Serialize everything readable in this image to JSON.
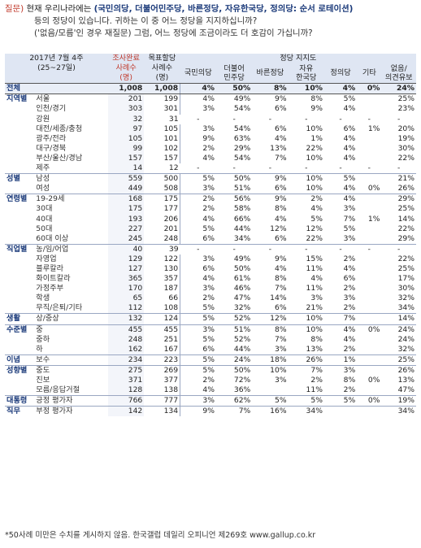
{
  "question": {
    "tag": "질문)",
    "line1_pre": "현재 우리나라에는",
    "line1_parties": "(국민의당, 더불어민주당, 바른정당, 자유한국당, 정의당: 순서 로테이션)",
    "line2": "등의 정당이 있습니다. 귀하는 이 중 어느 정당을 지지하십니까?",
    "line3": "('없음/모름'인 경우 재질문) 그럼, 어느 정당에 조금이라도 더 호감이 가십니까?"
  },
  "header": {
    "date": "2017년 7월 4주",
    "date_range": "(25~27일)",
    "col_sample1": "조사완료",
    "col_sample2": "사례수",
    "col_sample3": "(명)",
    "col_target1": "목표할당",
    "col_target2": "사례수",
    "col_target3": "(명)",
    "support": "정당 지지도",
    "parties": [
      "국민의당",
      "더불어\n민주당",
      "바른정당",
      "자유\n한국당",
      "정의당",
      "기타",
      "없음/\n의견유보"
    ]
  },
  "rows": [
    {
      "cat": "전체",
      "sub": "",
      "n1": "1,008",
      "n2": "1,008",
      "v": [
        "4%",
        "50%",
        "8%",
        "10%",
        "4%",
        "0%",
        "24%"
      ],
      "total": true
    },
    {
      "cat": "지역별",
      "sub": "서울",
      "n1": "201",
      "n2": "199",
      "v": [
        "4%",
        "49%",
        "9%",
        "8%",
        "5%",
        "",
        "25%"
      ]
    },
    {
      "cat": "",
      "sub": "인천/경기",
      "n1": "303",
      "n2": "301",
      "v": [
        "3%",
        "54%",
        "6%",
        "9%",
        "4%",
        "",
        "23%"
      ]
    },
    {
      "cat": "",
      "sub": "강원",
      "n1": "32",
      "n2": "31",
      "v": [
        "-",
        "-",
        "-",
        "-",
        "-",
        "-",
        "-"
      ]
    },
    {
      "cat": "",
      "sub": "대전/세종/충청",
      "n1": "97",
      "n2": "105",
      "v": [
        "3%",
        "54%",
        "6%",
        "10%",
        "6%",
        "1%",
        "20%"
      ]
    },
    {
      "cat": "",
      "sub": "광주/전라",
      "n1": "105",
      "n2": "101",
      "v": [
        "9%",
        "63%",
        "4%",
        "1%",
        "4%",
        "",
        "19%"
      ]
    },
    {
      "cat": "",
      "sub": "대구/경북",
      "n1": "99",
      "n2": "102",
      "v": [
        "2%",
        "29%",
        "13%",
        "22%",
        "4%",
        "",
        "30%"
      ]
    },
    {
      "cat": "",
      "sub": "부산/울산/경남",
      "n1": "157",
      "n2": "157",
      "v": [
        "4%",
        "54%",
        "7%",
        "10%",
        "4%",
        "",
        "22%"
      ]
    },
    {
      "cat": "",
      "sub": "제주",
      "n1": "14",
      "n2": "12",
      "v": [
        "-",
        "-",
        "-",
        "-",
        "-",
        "-",
        "-"
      ]
    },
    {
      "cat": "성별",
      "sub": "남성",
      "n1": "559",
      "n2": "500",
      "v": [
        "5%",
        "50%",
        "9%",
        "10%",
        "5%",
        "",
        "21%"
      ]
    },
    {
      "cat": "",
      "sub": "여성",
      "n1": "449",
      "n2": "508",
      "v": [
        "3%",
        "51%",
        "6%",
        "10%",
        "4%",
        "0%",
        "26%"
      ]
    },
    {
      "cat": "연령별",
      "sub": "19-29세",
      "n1": "168",
      "n2": "175",
      "v": [
        "2%",
        "56%",
        "9%",
        "2%",
        "4%",
        "",
        "29%"
      ]
    },
    {
      "cat": "",
      "sub": "30대",
      "n1": "175",
      "n2": "177",
      "v": [
        "2%",
        "58%",
        "8%",
        "4%",
        "3%",
        "",
        "25%"
      ]
    },
    {
      "cat": "",
      "sub": "40대",
      "n1": "193",
      "n2": "206",
      "v": [
        "4%",
        "66%",
        "4%",
        "5%",
        "7%",
        "1%",
        "14%"
      ]
    },
    {
      "cat": "",
      "sub": "50대",
      "n1": "227",
      "n2": "201",
      "v": [
        "5%",
        "44%",
        "12%",
        "12%",
        "5%",
        "",
        "22%"
      ]
    },
    {
      "cat": "",
      "sub": "60대 이상",
      "n1": "245",
      "n2": "248",
      "v": [
        "6%",
        "34%",
        "6%",
        "22%",
        "3%",
        "",
        "29%"
      ]
    },
    {
      "cat": "직업별",
      "sub": "농/임/어업",
      "n1": "40",
      "n2": "39",
      "v": [
        "-",
        "-",
        "-",
        "-",
        "-",
        "-",
        "-"
      ]
    },
    {
      "cat": "",
      "sub": "자영업",
      "n1": "129",
      "n2": "122",
      "v": [
        "3%",
        "49%",
        "9%",
        "15%",
        "2%",
        "",
        "22%"
      ]
    },
    {
      "cat": "",
      "sub": "블루칼라",
      "n1": "127",
      "n2": "130",
      "v": [
        "6%",
        "50%",
        "4%",
        "11%",
        "4%",
        "",
        "25%"
      ]
    },
    {
      "cat": "",
      "sub": "화이트칼라",
      "n1": "365",
      "n2": "357",
      "v": [
        "4%",
        "61%",
        "8%",
        "4%",
        "6%",
        "",
        "17%"
      ]
    },
    {
      "cat": "",
      "sub": "가정주부",
      "n1": "170",
      "n2": "187",
      "v": [
        "3%",
        "46%",
        "7%",
        "11%",
        "2%",
        "",
        "30%"
      ]
    },
    {
      "cat": "",
      "sub": "학생",
      "n1": "65",
      "n2": "66",
      "v": [
        "2%",
        "47%",
        "14%",
        "3%",
        "3%",
        "",
        "32%"
      ]
    },
    {
      "cat": "",
      "sub": "무직/은퇴/기타",
      "n1": "112",
      "n2": "108",
      "v": [
        "5%",
        "32%",
        "6%",
        "21%",
        "2%",
        "",
        "34%"
      ]
    },
    {
      "cat": "생활",
      "sub": "상/중상",
      "n1": "132",
      "n2": "124",
      "v": [
        "5%",
        "52%",
        "12%",
        "10%",
        "7%",
        "",
        "14%"
      ]
    },
    {
      "cat": "수준별",
      "sub": "중",
      "n1": "455",
      "n2": "455",
      "v": [
        "3%",
        "51%",
        "8%",
        "10%",
        "4%",
        "0%",
        "24%"
      ]
    },
    {
      "cat": "",
      "sub": "중하",
      "n1": "248",
      "n2": "251",
      "v": [
        "5%",
        "52%",
        "7%",
        "8%",
        "4%",
        "",
        "24%"
      ]
    },
    {
      "cat": "",
      "sub": "하",
      "n1": "162",
      "n2": "167",
      "v": [
        "6%",
        "44%",
        "3%",
        "13%",
        "2%",
        "",
        "32%"
      ]
    },
    {
      "cat": "이념",
      "sub": "보수",
      "n1": "234",
      "n2": "223",
      "v": [
        "5%",
        "24%",
        "18%",
        "26%",
        "1%",
        "",
        "25%"
      ]
    },
    {
      "cat": "성향별",
      "sub": "중도",
      "n1": "275",
      "n2": "269",
      "v": [
        "5%",
        "50%",
        "10%",
        "7%",
        "3%",
        "",
        "26%"
      ]
    },
    {
      "cat": "",
      "sub": "진보",
      "n1": "371",
      "n2": "377",
      "v": [
        "2%",
        "72%",
        "3%",
        "2%",
        "8%",
        "0%",
        "13%"
      ]
    },
    {
      "cat": "",
      "sub": "모름/응답거절",
      "n1": "128",
      "n2": "138",
      "v": [
        "4%",
        "36%",
        "",
        "11%",
        "2%",
        "",
        "47%"
      ]
    },
    {
      "cat": "대통령",
      "sub": "긍정 평가자",
      "n1": "766",
      "n2": "777",
      "v": [
        "3%",
        "62%",
        "5%",
        "5%",
        "5%",
        "0%",
        "19%"
      ]
    },
    {
      "cat": "직무",
      "sub": "부정 평가자",
      "n1": "142",
      "n2": "134",
      "v": [
        "9%",
        "7%",
        "16%",
        "34%",
        "",
        "",
        "34%"
      ]
    }
  ],
  "footnote": "*50사례 미만은 수치를 게시하지 않음. 한국갤럽 데일리 오피니언 제269호 www.gallup.co.kr"
}
